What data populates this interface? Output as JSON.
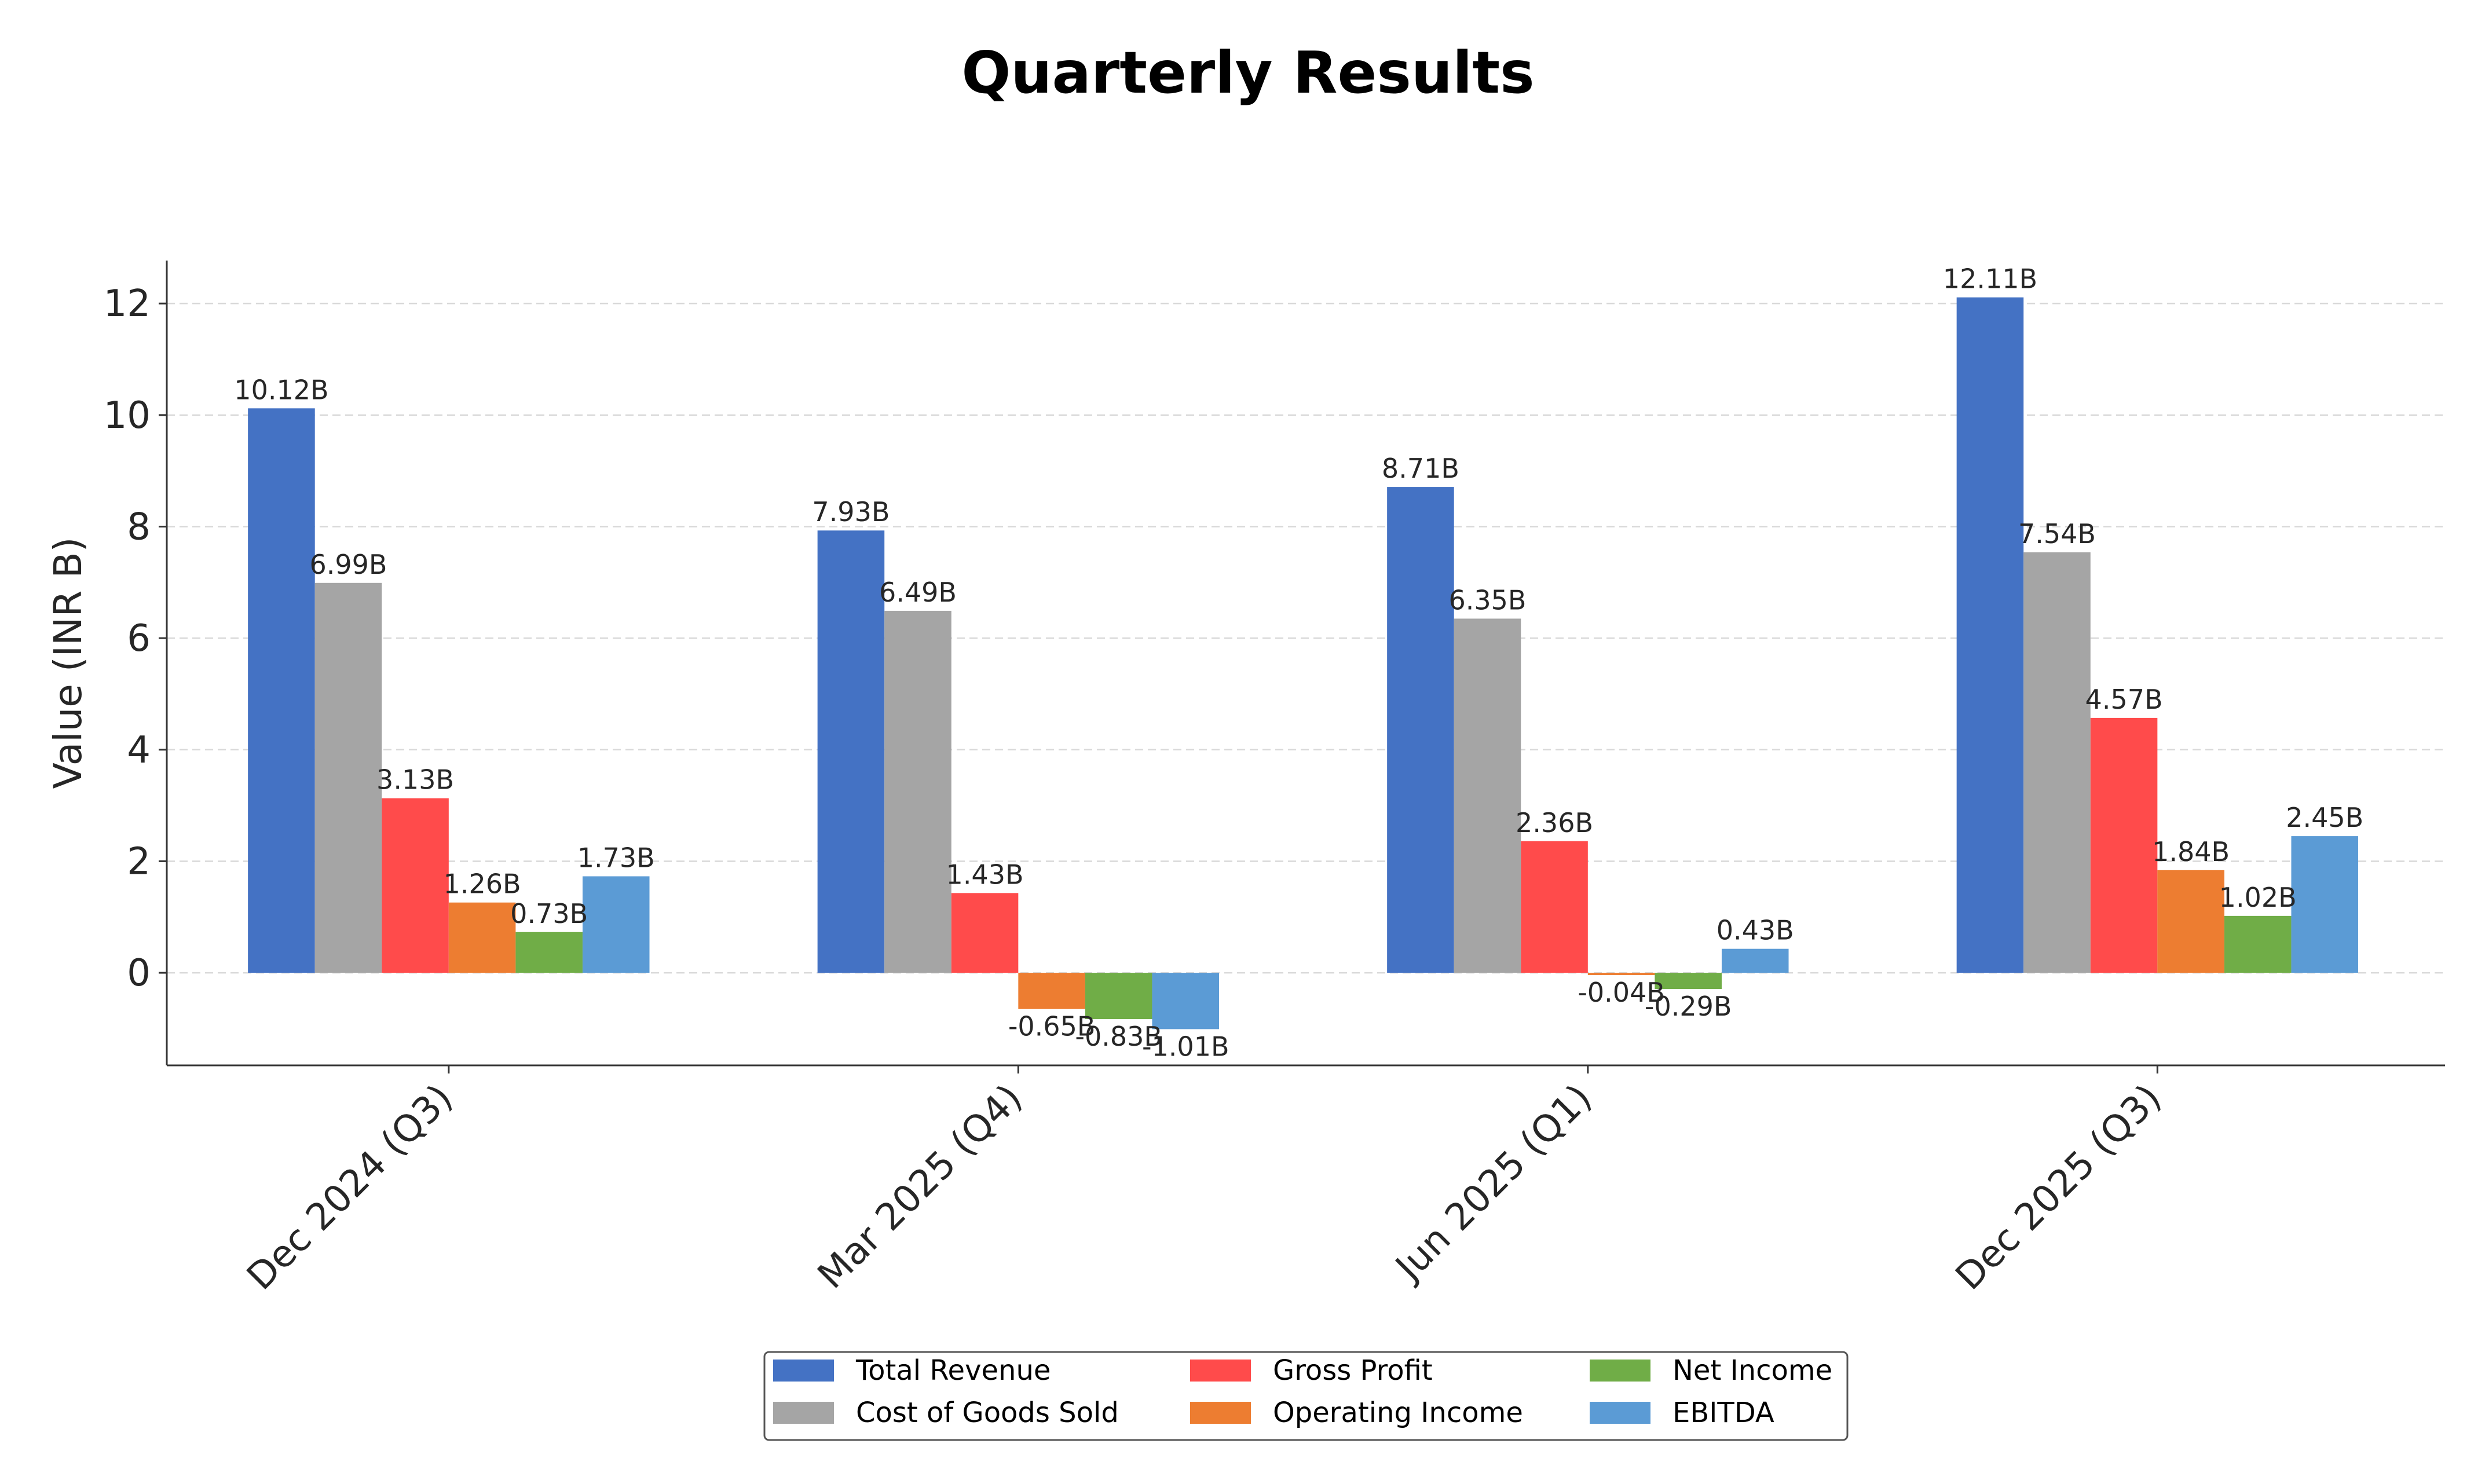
{
  "chart_data": {
    "type": "bar",
    "title": "Quarterly Results",
    "xlabel": "",
    "ylabel": "Value (INR B)",
    "categories": [
      "Dec 2024 (Q3)",
      "Mar 2025 (Q4)",
      "Jun 2025 (Q1)",
      "Dec 2025 (Q3)"
    ],
    "series": [
      {
        "name": "Total Revenue",
        "color": "#4472c4",
        "values": [
          10.12,
          7.93,
          8.71,
          12.11
        ],
        "labels": [
          "10.12B",
          "7.93B",
          "8.71B",
          "12.11B"
        ]
      },
      {
        "name": "Cost of Goods Sold",
        "color": "#a5a5a5",
        "values": [
          6.99,
          6.49,
          6.35,
          7.54
        ],
        "labels": [
          "6.99B",
          "6.49B",
          "6.35B",
          "7.54B"
        ]
      },
      {
        "name": "Gross Profit",
        "color": "#ff4b4b",
        "values": [
          3.13,
          1.43,
          2.36,
          4.57
        ],
        "labels": [
          "3.13B",
          "1.43B",
          "2.36B",
          "4.57B"
        ]
      },
      {
        "name": "Operating Income",
        "color": "#ed7d31",
        "values": [
          1.26,
          -0.65,
          -0.04,
          1.84
        ],
        "labels": [
          "1.26B",
          "-0.65B",
          "-0.04B",
          "1.84B"
        ]
      },
      {
        "name": "Net Income",
        "color": "#70ad47",
        "values": [
          0.73,
          -0.83,
          -0.29,
          1.02
        ],
        "labels": [
          "0.73B",
          "-0.83B",
          "-0.29B",
          "1.02B"
        ]
      },
      {
        "name": "EBITDA",
        "color": "#5b9bd5",
        "values": [
          1.73,
          -1.01,
          0.43,
          2.45
        ],
        "labels": [
          "1.73B",
          "-1.01B",
          "0.43B",
          "2.45B"
        ]
      }
    ],
    "ylim": [
      -1.66,
      12.77
    ],
    "yticks": [
      0,
      2,
      4,
      6,
      8,
      10,
      12
    ],
    "grid": true,
    "legend_position": "bottom-center"
  }
}
